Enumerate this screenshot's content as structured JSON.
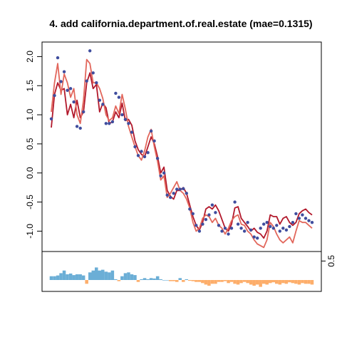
{
  "chart_data": [
    {
      "type": "line",
      "title": "4. add california.department.of.real.estate (mae=0.1315)",
      "xlabel": "",
      "ylabel": "",
      "ylim": [
        -1.35,
        2.25
      ],
      "y_ticks": [
        "-1.0",
        "-0.5",
        "0.0",
        "0.5",
        "1.0",
        "1.5",
        "2.0"
      ],
      "y_tick_values": [
        -1.0,
        -0.5,
        0.0,
        0.5,
        1.0,
        1.5,
        2.0
      ],
      "grid": false,
      "series": [
        {
          "color": "#b2182b",
          "style": "line",
          "values": [
            0.78,
            1.35,
            1.55,
            1.42,
            1.45,
            1.0,
            1.18,
            0.95,
            1.25,
            0.95,
            1.05,
            1.55,
            1.72,
            1.45,
            1.52,
            1.05,
            1.2,
            1.12,
            0.85,
            0.88,
            1.05,
            0.95,
            1.2,
            0.9,
            0.92,
            0.82,
            0.55,
            0.4,
            0.32,
            0.28,
            0.45,
            0.62,
            0.5,
            0.28,
            0.0,
            0.1,
            -0.3,
            -0.4,
            -0.45,
            -0.3,
            -0.3,
            -0.25,
            -0.35,
            -0.55,
            -0.75,
            -0.9,
            -0.98,
            -0.85,
            -0.62,
            -0.58,
            -0.62,
            -0.55,
            -0.65,
            -0.8,
            -0.95,
            -1.0,
            -0.88,
            -0.6,
            -0.58,
            -0.78,
            -0.85,
            -0.92,
            -1.0,
            -0.95,
            -1.02,
            -1.05,
            -1.12,
            -1.0,
            -0.72,
            -0.75,
            -0.75,
            -0.88,
            -0.78,
            -0.75,
            -0.85,
            -0.9,
            -0.85,
            -0.7,
            -0.65,
            -0.62,
            -0.68,
            -0.72
          ]
        },
        {
          "color": "#e2675c",
          "style": "line",
          "values": [
            1.05,
            1.55,
            1.88,
            1.35,
            1.7,
            1.55,
            1.3,
            1.45,
            1.0,
            0.85,
            1.25,
            1.95,
            1.88,
            1.55,
            1.55,
            1.45,
            1.28,
            1.0,
            0.9,
            0.95,
            1.15,
            1.02,
            1.35,
            1.1,
            0.8,
            0.62,
            0.45,
            0.3,
            0.22,
            0.38,
            0.62,
            0.75,
            0.45,
            0.2,
            -0.12,
            -0.05,
            -0.42,
            -0.35,
            -0.25,
            -0.15,
            -0.3,
            -0.35,
            -0.45,
            -0.6,
            -0.85,
            -1.0,
            -0.95,
            -0.78,
            -0.72,
            -0.75,
            -0.85,
            -0.78,
            -0.9,
            -0.95,
            -1.05,
            -0.95,
            -0.82,
            -0.75,
            -0.72,
            -0.88,
            -0.9,
            -1.0,
            -1.05,
            -1.15,
            -1.22,
            -1.25,
            -1.28,
            -1.15,
            -0.85,
            -0.92,
            -1.05,
            -1.15,
            -1.2,
            -1.15,
            -1.1,
            -1.2,
            -1.0,
            -0.82,
            -0.85,
            -0.85,
            -0.9,
            -0.95
          ]
        },
        {
          "color": "#3f4d9e",
          "style": "points",
          "values": [
            0.93,
            1.33,
            1.98,
            1.57,
            1.74,
            1.42,
            1.45,
            1.22,
            0.8,
            0.77,
            1.05,
            1.58,
            2.1,
            1.72,
            1.55,
            1.25,
            1.18,
            0.85,
            0.85,
            0.88,
            1.37,
            1.3,
            1.0,
            0.92,
            0.85,
            0.7,
            0.45,
            0.3,
            0.37,
            0.28,
            0.35,
            0.72,
            0.55,
            0.25,
            -0.05,
            0.0,
            -0.38,
            -0.42,
            -0.35,
            -0.28,
            -0.28,
            -0.27,
            -0.35,
            -0.62,
            -0.7,
            -0.9,
            -1.0,
            -0.88,
            -0.8,
            -0.72,
            -0.55,
            -0.68,
            -0.9,
            -1.0,
            -0.95,
            -1.05,
            -0.95,
            -0.5,
            -0.88,
            -0.95,
            -1.0,
            -0.85,
            -0.98,
            -1.1,
            -1.12,
            -0.95,
            -0.88,
            -0.85,
            -0.92,
            -0.95,
            -0.9,
            -1.0,
            -0.95,
            -0.98,
            -0.92,
            -0.85,
            -0.7,
            -0.78,
            -0.72,
            -0.78,
            -0.82,
            -0.85
          ]
        }
      ]
    },
    {
      "type": "bar",
      "xlabel": "",
      "ylabel": "",
      "ylim": [
        -0.3,
        0.75
      ],
      "y_ticks": [
        "0.5"
      ],
      "y_tick_values": [
        0.5
      ],
      "grid": false,
      "colors": {
        "positive": "#6baed6",
        "negative": "#fdae6b"
      },
      "values": [
        0.1,
        0.1,
        0.12,
        0.18,
        0.25,
        0.15,
        0.17,
        0.13,
        0.15,
        0.15,
        0.12,
        -0.1,
        0.2,
        0.25,
        0.33,
        0.25,
        0.27,
        0.22,
        0.2,
        0.25,
        0.02,
        -0.03,
        0.1,
        0.18,
        0.2,
        0.15,
        0.13,
        -0.05,
        0.02,
        0.05,
        0.02,
        0.05,
        0.04,
        0.1,
        0.02,
        0.0,
        0.0,
        -0.03,
        -0.03,
        -0.05,
        0.05,
        -0.05,
        0.02,
        -0.02,
        -0.03,
        -0.05,
        -0.05,
        -0.08,
        -0.12,
        -0.15,
        -0.1,
        -0.1,
        -0.05,
        -0.05,
        -0.03,
        -0.08,
        -0.05,
        -0.1,
        -0.12,
        -0.08,
        -0.05,
        -0.08,
        -0.12,
        -0.15,
        -0.12,
        -0.18,
        -0.1,
        -0.12,
        -0.08,
        -0.06,
        -0.1,
        -0.12,
        -0.08,
        -0.1,
        -0.06,
        -0.08,
        -0.1,
        -0.12,
        -0.08,
        -0.1,
        -0.1,
        -0.12
      ]
    }
  ]
}
